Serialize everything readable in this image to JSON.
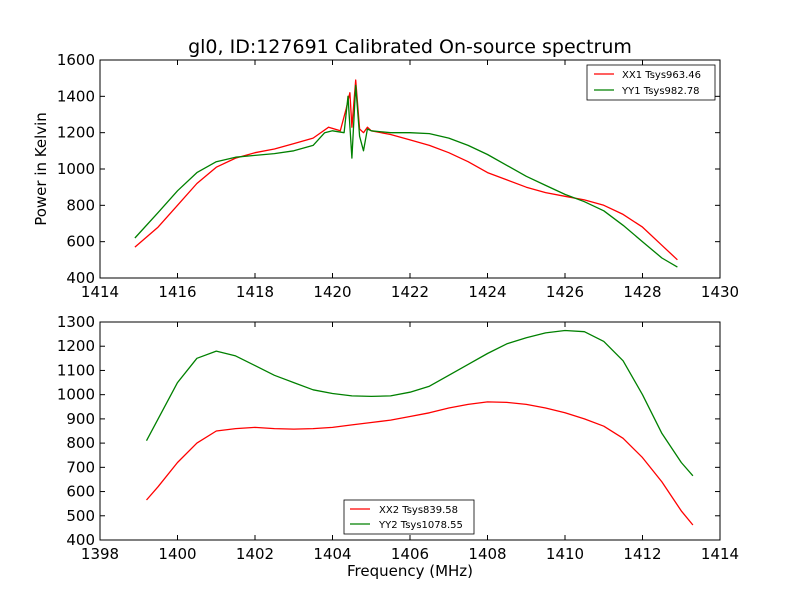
{
  "chart_data": [
    {
      "type": "line",
      "title": "gl0, ID:127691 Calibrated On-source spectrum",
      "xlabel": "",
      "ylabel": "Power in Kelvin",
      "xlim": [
        1414,
        1430
      ],
      "ylim": [
        400,
        1600
      ],
      "xticks": [
        "1414",
        "1416",
        "1418",
        "1420",
        "1422",
        "1424",
        "1426",
        "1428",
        "1430"
      ],
      "yticks": [
        "400",
        "600",
        "800",
        "1000",
        "1200",
        "1400",
        "1600"
      ],
      "legend_position": "top-right",
      "series": [
        {
          "name": "XX1 Tsys963.46",
          "color": "#ff0000",
          "points": [
            [
              1414.9,
              570
            ],
            [
              1415.5,
              680
            ],
            [
              1416,
              800
            ],
            [
              1416.5,
              920
            ],
            [
              1417,
              1010
            ],
            [
              1417.5,
              1060
            ],
            [
              1418,
              1090
            ],
            [
              1418.5,
              1110
            ],
            [
              1419,
              1140
            ],
            [
              1419.5,
              1170
            ],
            [
              1419.9,
              1230
            ],
            [
              1420.2,
              1210
            ],
            [
              1420.35,
              1330
            ],
            [
              1420.45,
              1420
            ],
            [
              1420.5,
              1230
            ],
            [
              1420.6,
              1490
            ],
            [
              1420.7,
              1220
            ],
            [
              1420.8,
              1200
            ],
            [
              1420.9,
              1230
            ],
            [
              1421,
              1210
            ],
            [
              1421.5,
              1190
            ],
            [
              1422,
              1160
            ],
            [
              1422.5,
              1130
            ],
            [
              1423,
              1090
            ],
            [
              1423.5,
              1040
            ],
            [
              1424,
              980
            ],
            [
              1424.5,
              940
            ],
            [
              1425,
              900
            ],
            [
              1425.5,
              870
            ],
            [
              1426,
              850
            ],
            [
              1426.5,
              830
            ],
            [
              1427,
              800
            ],
            [
              1427.5,
              750
            ],
            [
              1428,
              680
            ],
            [
              1428.5,
              580
            ],
            [
              1428.9,
              500
            ]
          ]
        },
        {
          "name": "YY1 Tsys982.78",
          "color": "#008000",
          "points": [
            [
              1414.9,
              620
            ],
            [
              1415.5,
              760
            ],
            [
              1416,
              880
            ],
            [
              1416.5,
              980
            ],
            [
              1417,
              1040
            ],
            [
              1417.5,
              1065
            ],
            [
              1418,
              1075
            ],
            [
              1418.5,
              1085
            ],
            [
              1419,
              1100
            ],
            [
              1419.5,
              1130
            ],
            [
              1419.8,
              1200
            ],
            [
              1420,
              1210
            ],
            [
              1420.3,
              1200
            ],
            [
              1420.4,
              1400
            ],
            [
              1420.5,
              1060
            ],
            [
              1420.6,
              1460
            ],
            [
              1420.7,
              1180
            ],
            [
              1420.8,
              1100
            ],
            [
              1420.9,
              1220
            ],
            [
              1421,
              1210
            ],
            [
              1421.5,
              1200
            ],
            [
              1422,
              1200
            ],
            [
              1422.5,
              1195
            ],
            [
              1423,
              1170
            ],
            [
              1423.5,
              1130
            ],
            [
              1424,
              1080
            ],
            [
              1424.5,
              1020
            ],
            [
              1425,
              960
            ],
            [
              1425.5,
              910
            ],
            [
              1426,
              860
            ],
            [
              1426.5,
              820
            ],
            [
              1427,
              770
            ],
            [
              1427.5,
              690
            ],
            [
              1428,
              600
            ],
            [
              1428.5,
              510
            ],
            [
              1428.9,
              460
            ]
          ]
        }
      ]
    },
    {
      "type": "line",
      "title": "",
      "xlabel": "Frequency (MHz)",
      "ylabel": "",
      "xlim": [
        1398,
        1414
      ],
      "ylim": [
        400,
        1300
      ],
      "xticks": [
        "1398",
        "1400",
        "1402",
        "1404",
        "1406",
        "1408",
        "1410",
        "1412",
        "1414"
      ],
      "yticks": [
        "400",
        "500",
        "600",
        "700",
        "800",
        "900",
        "1000",
        "1100",
        "1200",
        "1300"
      ],
      "legend_position": "bottom-center",
      "series": [
        {
          "name": "XX2 Tsys839.58",
          "color": "#ff0000",
          "points": [
            [
              1399.2,
              565
            ],
            [
              1399.5,
              620
            ],
            [
              1400,
              720
            ],
            [
              1400.5,
              800
            ],
            [
              1401,
              850
            ],
            [
              1401.5,
              860
            ],
            [
              1402,
              865
            ],
            [
              1402.5,
              860
            ],
            [
              1403,
              858
            ],
            [
              1403.5,
              860
            ],
            [
              1404,
              865
            ],
            [
              1404.5,
              875
            ],
            [
              1405,
              885
            ],
            [
              1405.5,
              895
            ],
            [
              1406,
              910
            ],
            [
              1406.5,
              925
            ],
            [
              1407,
              945
            ],
            [
              1407.5,
              960
            ],
            [
              1408,
              970
            ],
            [
              1408.5,
              968
            ],
            [
              1409,
              960
            ],
            [
              1409.5,
              945
            ],
            [
              1410,
              925
            ],
            [
              1410.5,
              900
            ],
            [
              1411,
              870
            ],
            [
              1411.5,
              820
            ],
            [
              1412,
              740
            ],
            [
              1412.5,
              640
            ],
            [
              1413,
              520
            ],
            [
              1413.3,
              462
            ]
          ]
        },
        {
          "name": "YY2 Tsys1078.55",
          "color": "#008000",
          "points": [
            [
              1399.2,
              810
            ],
            [
              1399.5,
              900
            ],
            [
              1400,
              1050
            ],
            [
              1400.5,
              1150
            ],
            [
              1401,
              1180
            ],
            [
              1401.5,
              1160
            ],
            [
              1402,
              1120
            ],
            [
              1402.5,
              1080
            ],
            [
              1403,
              1050
            ],
            [
              1403.5,
              1020
            ],
            [
              1404,
              1005
            ],
            [
              1404.5,
              995
            ],
            [
              1405,
              993
            ],
            [
              1405.5,
              995
            ],
            [
              1406,
              1010
            ],
            [
              1406.5,
              1035
            ],
            [
              1407,
              1080
            ],
            [
              1407.5,
              1125
            ],
            [
              1408,
              1170
            ],
            [
              1408.5,
              1210
            ],
            [
              1409,
              1235
            ],
            [
              1409.5,
              1255
            ],
            [
              1410,
              1265
            ],
            [
              1410.5,
              1260
            ],
            [
              1411,
              1220
            ],
            [
              1411.5,
              1140
            ],
            [
              1412,
              1000
            ],
            [
              1412.5,
              840
            ],
            [
              1413,
              720
            ],
            [
              1413.3,
              665
            ]
          ]
        }
      ]
    }
  ]
}
